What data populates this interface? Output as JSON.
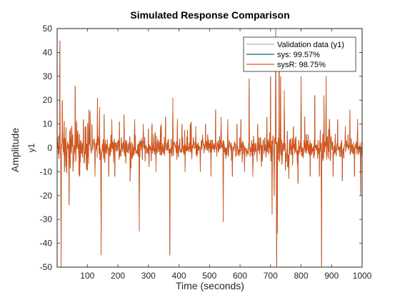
{
  "chart_data": {
    "type": "line",
    "title": "Simulated Response Comparison",
    "xlabel": "Time (seconds)",
    "ylabel": "Amplitude",
    "channel_label": "y1",
    "xlim": [
      1,
      1000
    ],
    "ylim": [
      -50,
      50
    ],
    "x_ticks": [
      100,
      200,
      300,
      400,
      500,
      600,
      700,
      800,
      900,
      1000
    ],
    "y_ticks": [
      -50,
      -40,
      -30,
      -20,
      -10,
      0,
      10,
      20,
      30,
      40,
      50
    ],
    "grid": false,
    "legend_position": "top-right",
    "series": [
      {
        "name": "Validation data (y1)",
        "color": "#b3b3b3"
      },
      {
        "name": "sys: 99.57%",
        "color": "#0b6e6b"
      },
      {
        "name": "sysR: 98.75%",
        "color": "#d95319"
      }
    ],
    "spikes": [
      [
        10,
        45
      ],
      [
        14,
        -50
      ],
      [
        18,
        20
      ],
      [
        25,
        -10
      ],
      [
        40,
        -24
      ],
      [
        60,
        26
      ],
      [
        75,
        -12
      ],
      [
        95,
        9
      ],
      [
        105,
        16
      ],
      [
        115,
        10
      ],
      [
        125,
        -12
      ],
      [
        133,
        21
      ],
      [
        140,
        17
      ],
      [
        145,
        -45
      ],
      [
        155,
        14
      ],
      [
        170,
        -12
      ],
      [
        180,
        12
      ],
      [
        190,
        -12
      ],
      [
        205,
        11
      ],
      [
        220,
        14
      ],
      [
        240,
        -14
      ],
      [
        255,
        12
      ],
      [
        270,
        -35
      ],
      [
        283,
        10
      ],
      [
        300,
        8
      ],
      [
        312,
        10
      ],
      [
        325,
        -10
      ],
      [
        340,
        9
      ],
      [
        356,
        13
      ],
      [
        370,
        -45
      ],
      [
        380,
        21
      ],
      [
        395,
        12
      ],
      [
        410,
        10
      ],
      [
        420,
        -10
      ],
      [
        437,
        10
      ],
      [
        455,
        9
      ],
      [
        470,
        -10
      ],
      [
        487,
        10
      ],
      [
        505,
        -12
      ],
      [
        520,
        16
      ],
      [
        538,
        13
      ],
      [
        545,
        -31
      ],
      [
        560,
        12
      ],
      [
        575,
        -12
      ],
      [
        590,
        10
      ],
      [
        603,
        12
      ],
      [
        615,
        -10
      ],
      [
        630,
        29
      ],
      [
        642,
        -12
      ],
      [
        658,
        10
      ],
      [
        670,
        -8
      ],
      [
        688,
        13
      ],
      [
        700,
        30
      ],
      [
        705,
        -28
      ],
      [
        712,
        -20
      ],
      [
        717,
        50
      ],
      [
        720,
        -50
      ],
      [
        722,
        -36
      ],
      [
        728,
        45
      ],
      [
        733,
        30
      ],
      [
        745,
        24
      ],
      [
        760,
        -13
      ],
      [
        775,
        9
      ],
      [
        790,
        -15
      ],
      [
        800,
        30
      ],
      [
        812,
        13
      ],
      [
        830,
        -12
      ],
      [
        845,
        22
      ],
      [
        860,
        -12
      ],
      [
        867,
        -50
      ],
      [
        875,
        22
      ],
      [
        882,
        30
      ],
      [
        893,
        12
      ],
      [
        905,
        -12
      ],
      [
        920,
        12
      ],
      [
        935,
        -14
      ],
      [
        945,
        9
      ],
      [
        960,
        16
      ],
      [
        975,
        -12
      ],
      [
        985,
        12
      ],
      [
        995,
        -20
      ]
    ]
  }
}
